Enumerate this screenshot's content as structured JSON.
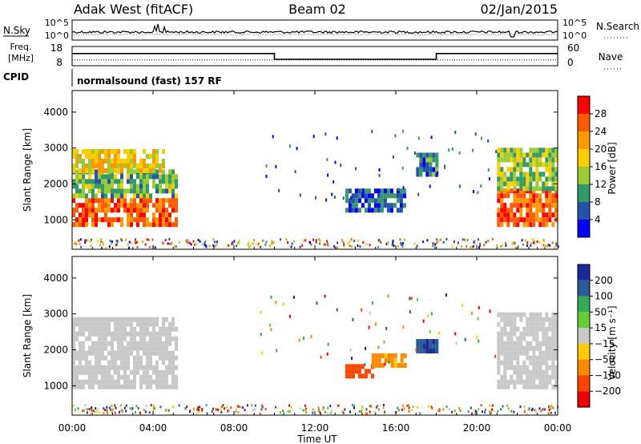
{
  "header": {
    "left": "Adak West (fitACF)",
    "center": "Beam 02",
    "right": "02/Jan/2015"
  },
  "strips": {
    "nsky_label": "N.Sky",
    "nsky_ticks": [
      "10^5",
      "10^0"
    ],
    "nsearch_label": "N.Search",
    "nsearch_ticks": [
      "10^5",
      "10^0"
    ],
    "freq_label_line1": "Freq.",
    "freq_label_line2": "[MHz]",
    "freq_ticks": [
      "18",
      "8"
    ],
    "nave_label": "Nave",
    "nave_ticks": [
      "60",
      "0"
    ],
    "cpid_label": "CPID",
    "cpid_text": "normalsound (fast) 157 RF"
  },
  "power_colorbar": {
    "label": "Power [dB]",
    "ticks": [
      "28",
      "24",
      "20",
      "16",
      "12",
      "8",
      "4"
    ],
    "colors": [
      "#ff0000",
      "#ff5a00",
      "#ff9900",
      "#ffcc00",
      "#99cc33",
      "#339966",
      "#2255aa",
      "#0000ff"
    ]
  },
  "velocity_colorbar": {
    "label": "Velocity [m s⁻¹]",
    "ticks": [
      "200",
      "100",
      "50",
      "15",
      "−15",
      "−50",
      "−100",
      "−200"
    ],
    "colors": [
      "#1a2a99",
      "#2a5a99",
      "#33aa55",
      "#66cc33",
      "#c8c8c8",
      "#ffcc00",
      "#ff8800",
      "#ff4400",
      "#ee0000"
    ]
  },
  "chart_data": [
    {
      "type": "heatmap",
      "title": "Power",
      "ylabel": "Slant Range [km]",
      "xlabel": "Time UT",
      "xticks": [
        "00:00",
        "04:00",
        "08:00",
        "12:00",
        "16:00",
        "20:00",
        "00:00"
      ],
      "yticks": [
        1000,
        2000,
        3000,
        4000
      ],
      "xlim_hours": [
        0,
        24
      ],
      "ylim_km": [
        180,
        4600
      ],
      "regions": [
        {
          "t0": 0.0,
          "t1": 5.2,
          "r0": 800,
          "r1": 1600,
          "value_db": 26
        },
        {
          "t0": 0.0,
          "t1": 5.2,
          "r0": 1600,
          "r1": 2300,
          "value_db": 12
        },
        {
          "t0": 0.0,
          "t1": 4.5,
          "r0": 2300,
          "r1": 2900,
          "value_db": 18
        },
        {
          "t0": 13.5,
          "t1": 16.5,
          "r0": 1200,
          "r1": 1800,
          "value_db": 6
        },
        {
          "t0": 17.0,
          "t1": 18.0,
          "r0": 2200,
          "r1": 2800,
          "value_db": 8
        },
        {
          "t0": 21.0,
          "t1": 24.0,
          "r0": 800,
          "r1": 1800,
          "value_db": 26
        },
        {
          "t0": 21.0,
          "t1": 24.0,
          "r0": 1800,
          "r1": 3000,
          "value_db": 14
        }
      ]
    },
    {
      "type": "heatmap",
      "title": "Velocity",
      "ylabel": "Slant Range [km]",
      "xlabel": "Time UT",
      "xticks": [
        "00:00",
        "04:00",
        "08:00",
        "12:00",
        "16:00",
        "20:00",
        "00:00"
      ],
      "yticks": [
        1000,
        2000,
        3000,
        4000
      ],
      "xlim_hours": [
        0,
        24
      ],
      "ylim_km": [
        180,
        4600
      ],
      "regions": [
        {
          "t0": 0.0,
          "t1": 5.2,
          "r0": 900,
          "r1": 2900,
          "value_ms": 0
        },
        {
          "t0": 13.5,
          "t1": 14.8,
          "r0": 1200,
          "r1": 1500,
          "value_ms": -150
        },
        {
          "t0": 14.8,
          "t1": 16.5,
          "r0": 1500,
          "r1": 1900,
          "value_ms": -60
        },
        {
          "t0": 17.0,
          "t1": 18.0,
          "r0": 1900,
          "r1": 2300,
          "value_ms": 150
        },
        {
          "t0": 21.0,
          "t1": 24.0,
          "r0": 900,
          "r1": 3000,
          "value_ms": 0
        }
      ]
    }
  ],
  "freq_series": {
    "segments": [
      {
        "t0": 0.0,
        "t1": 10.0,
        "mhz": 13.5
      },
      {
        "t0": 10.0,
        "t1": 18.0,
        "mhz": 10.5
      },
      {
        "t0": 18.0,
        "t1": 24.0,
        "mhz": 13.5
      }
    ],
    "nave": 3
  }
}
